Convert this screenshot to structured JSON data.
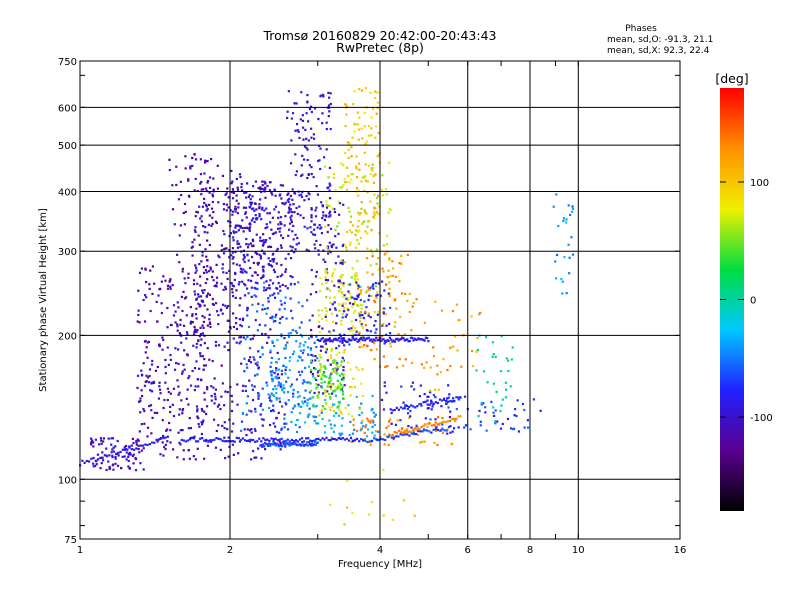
{
  "chart_data": {
    "type": "scatter",
    "title": "Tromsø 20160829 20:42:00-20:43:43",
    "subtitle": "RwPretec (8p)",
    "xlabel": "Frequency [MHz]",
    "ylabel": "Stationary phase Virtual Height [km]",
    "x_scale": "log",
    "y_scale": "log",
    "xlim": [
      1,
      16
    ],
    "ylim": [
      75,
      750
    ],
    "x_ticks": [
      1,
      2,
      4,
      6,
      8,
      10,
      16
    ],
    "y_ticks": [
      75,
      100,
      200,
      300,
      400,
      500,
      600,
      750
    ],
    "x_gridlines": [
      2,
      4,
      6,
      8,
      10
    ],
    "y_gridlines": [
      100,
      200,
      300,
      400,
      500,
      600
    ],
    "grid": true,
    "phase_stats": {
      "heading": "Phases",
      "line_o": "mean, sd,O: -91.3, 21.1",
      "line_x": "mean, sd,X:  92.3, 22.4"
    },
    "colorbar": {
      "label": "[deg]",
      "range": [
        -180,
        180
      ],
      "ticks": [
        100,
        0,
        -100
      ],
      "colormap": [
        "#000000",
        "#5a0090",
        "#2020ff",
        "#00c8ff",
        "#00dd40",
        "#f0f000",
        "#ff9000",
        "#ff0000"
      ]
    },
    "series": [
      {
        "type": "clusters",
        "clusters": [
          {
            "phase": -105,
            "x": [
              1.05,
              1.35
            ],
            "y": [
              104,
              122
            ],
            "n": 90
          },
          {
            "phase": -110,
            "x": [
              1.3,
              1.8
            ],
            "y": [
              110,
              280
            ],
            "n": 260
          },
          {
            "phase": -115,
            "x": [
              1.5,
              2.1
            ],
            "y": [
              200,
              480
            ],
            "n": 180
          },
          {
            "phase": -105,
            "x": [
              1.7,
              2.6
            ],
            "y": [
              110,
              420
            ],
            "n": 380
          },
          {
            "phase": -100,
            "x": [
              2.0,
              2.7
            ],
            "y": [
              250,
              420
            ],
            "n": 220
          },
          {
            "phase": -95,
            "x": [
              2.6,
              3.2
            ],
            "y": [
              300,
              650
            ],
            "n": 150
          },
          {
            "phase": -100,
            "x": [
              2.9,
              3.4
            ],
            "y": [
              150,
              380
            ],
            "n": 130
          },
          {
            "phase": -55,
            "x": [
              2.1,
              2.9
            ],
            "y": [
              125,
              260
            ],
            "n": 140
          },
          {
            "phase": -40,
            "x": [
              2.4,
              3.0
            ],
            "y": [
              140,
              200
            ],
            "n": 90
          },
          {
            "phase": -30,
            "x": [
              2.7,
              4.0
            ],
            "y": [
              120,
              150
            ],
            "n": 80
          },
          {
            "phase": 40,
            "x": [
              2.9,
              3.4
            ],
            "y": [
              140,
              180
            ],
            "n": 80
          },
          {
            "phase": 80,
            "x": [
              3.0,
              3.7
            ],
            "y": [
              135,
              270
            ],
            "n": 140
          },
          {
            "phase": 100,
            "x": [
              3.4,
              4.0
            ],
            "y": [
              300,
              660
            ],
            "n": 130
          },
          {
            "phase": 70,
            "x": [
              3.1,
              4.2
            ],
            "y": [
              220,
              460
            ],
            "n": 110
          },
          {
            "phase": -80,
            "x": [
              3.2,
              4.2
            ],
            "y": [
              190,
              260
            ],
            "n": 90
          },
          {
            "phase": 125,
            "x": [
              3.6,
              4.6
            ],
            "y": [
              170,
              300
            ],
            "n": 80
          },
          {
            "phase": 130,
            "x": [
              3.5,
              5.7
            ],
            "y": [
              118,
              135
            ],
            "n": 60
          },
          {
            "phase": -85,
            "x": [
              4.0,
              5.8
            ],
            "y": [
              122,
              160
            ],
            "n": 60
          },
          {
            "phase": 120,
            "x": [
              4.6,
              6.4
            ],
            "y": [
              150,
              240
            ],
            "n": 40
          },
          {
            "phase": -70,
            "x": [
              5.0,
              8.5
            ],
            "y": [
              125,
              150
            ],
            "n": 50
          },
          {
            "phase": 0,
            "x": [
              6.2,
              7.4
            ],
            "y": [
              130,
              200
            ],
            "n": 30
          },
          {
            "phase": -40,
            "x": [
              8.8,
              9.8
            ],
            "y": [
              240,
              400
            ],
            "n": 25
          },
          {
            "phase": 90,
            "x": [
              3.0,
              5.5
            ],
            "y": [
              80,
              110
            ],
            "n": 12
          }
        ],
        "lines": [
          {
            "phase": -80,
            "x": [
              1.6,
              3.7
            ],
            "y": [
              121,
              121
            ],
            "n": 90
          },
          {
            "phase": -65,
            "x": [
              2.3,
              3.0
            ],
            "y": [
              118,
              119
            ],
            "n": 60
          },
          {
            "phase": -90,
            "x": [
              3.0,
              5.0
            ],
            "y": [
              196,
              196
            ],
            "n": 90
          },
          {
            "phase": -85,
            "x": [
              1.0,
              1.5
            ],
            "y": [
              108,
              122
            ],
            "n": 40
          },
          {
            "phase": -70,
            "x": [
              3.7,
              5.5
            ],
            "y": [
              120,
              128
            ],
            "n": 40
          },
          {
            "phase": 130,
            "x": [
              4.2,
              5.8
            ],
            "y": [
              124,
              135
            ],
            "n": 35
          },
          {
            "phase": -75,
            "x": [
              4.2,
              5.8
            ],
            "y": [
              140,
              148
            ],
            "n": 35
          }
        ]
      }
    ]
  }
}
